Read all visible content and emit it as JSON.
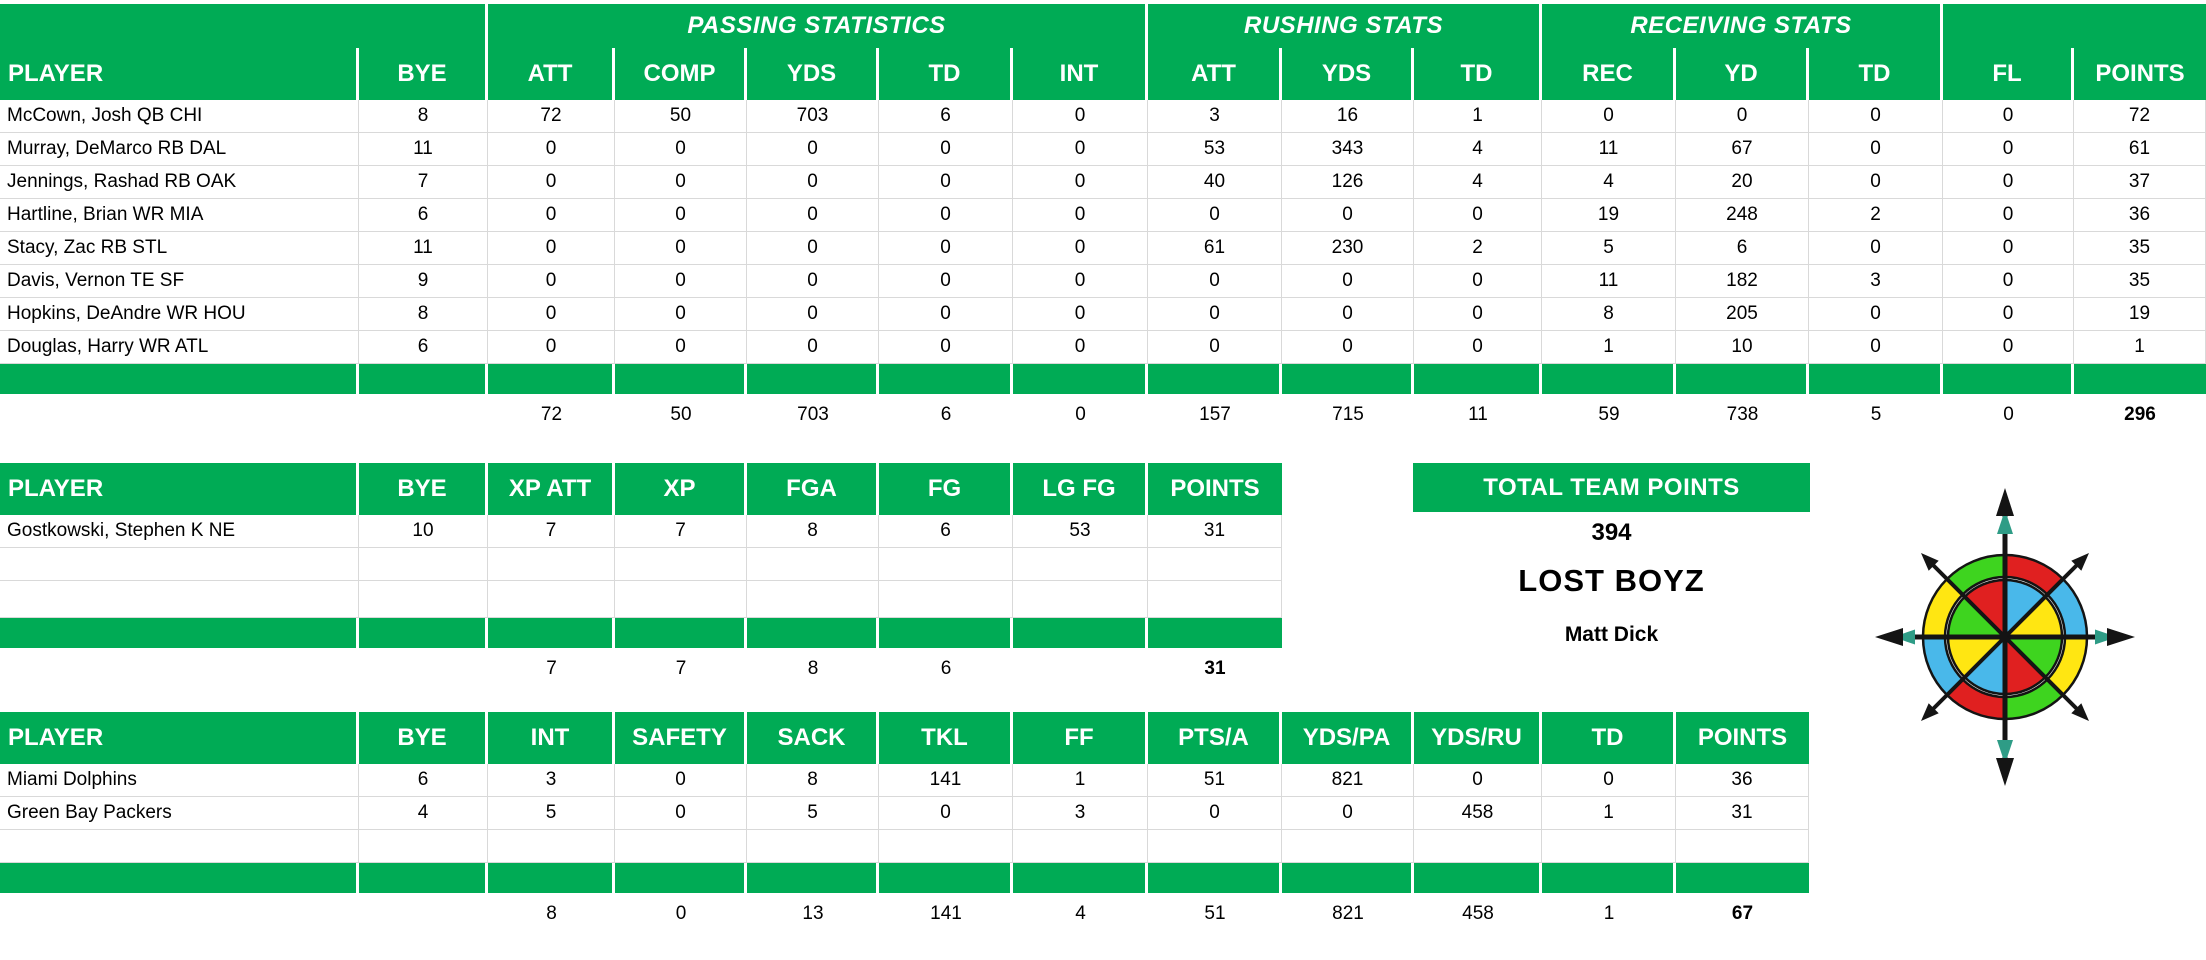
{
  "colors": {
    "header-green": "#00AB55",
    "grid-line": "#d9d9d9",
    "logo-red": "#e02020",
    "logo-green": "#3ed41f",
    "logo-yellow": "#ffe612",
    "logo-blue": "#49b8ea",
    "logo-teal": "#2e9c86",
    "logo-black": "#141414"
  },
  "tables": [
    {
      "name": "offense",
      "group_headers": [
        {
          "label": "",
          "span": 2
        },
        {
          "label": "PASSING STATISTICS",
          "span": 5
        },
        {
          "label": "RUSHING STATS",
          "span": 3
        },
        {
          "label": "RECEIVING STATS",
          "span": 3
        },
        {
          "label": "",
          "span": 2
        }
      ],
      "columns": [
        "PLAYER",
        "BYE",
        "ATT",
        "COMP",
        "YDS",
        "TD",
        "INT",
        "ATT",
        "YDS",
        "TD",
        "REC",
        "YD",
        "TD",
        "FL",
        "POINTS"
      ],
      "rows": [
        [
          "McCown, Josh QB CHI",
          "8",
          "72",
          "50",
          "703",
          "6",
          "0",
          "3",
          "16",
          "1",
          "0",
          "0",
          "0",
          "0",
          "72"
        ],
        [
          "Murray, DeMarco RB DAL",
          "11",
          "0",
          "0",
          "0",
          "0",
          "0",
          "53",
          "343",
          "4",
          "11",
          "67",
          "0",
          "0",
          "61"
        ],
        [
          "Jennings, Rashad RB OAK",
          "7",
          "0",
          "0",
          "0",
          "0",
          "0",
          "40",
          "126",
          "4",
          "4",
          "20",
          "0",
          "0",
          "37"
        ],
        [
          "Hartline, Brian WR MIA",
          "6",
          "0",
          "0",
          "0",
          "0",
          "0",
          "0",
          "0",
          "0",
          "19",
          "248",
          "2",
          "0",
          "36"
        ],
        [
          "Stacy, Zac RB STL",
          "11",
          "0",
          "0",
          "0",
          "0",
          "0",
          "61",
          "230",
          "2",
          "5",
          "6",
          "0",
          "0",
          "35"
        ],
        [
          "Davis, Vernon TE SF",
          "9",
          "0",
          "0",
          "0",
          "0",
          "0",
          "0",
          "0",
          "0",
          "11",
          "182",
          "3",
          "0",
          "35"
        ],
        [
          "Hopkins, DeAndre WR HOU",
          "8",
          "0",
          "0",
          "0",
          "0",
          "0",
          "0",
          "0",
          "0",
          "8",
          "205",
          "0",
          "0",
          "19"
        ],
        [
          "Douglas, Harry WR ATL",
          "6",
          "0",
          "0",
          "0",
          "0",
          "0",
          "0",
          "0",
          "0",
          "1",
          "10",
          "0",
          "0",
          "1"
        ]
      ],
      "empty_rows": 0,
      "totals": [
        "",
        "",
        "72",
        "50",
        "703",
        "6",
        "0",
        "157",
        "715",
        "11",
        "59",
        "738",
        "5",
        "0",
        "296"
      ]
    },
    {
      "name": "kicker",
      "group_headers": null,
      "columns": [
        "PLAYER",
        "BYE",
        "XP ATT",
        "XP",
        "FGA",
        "FG",
        "LG FG",
        "POINTS"
      ],
      "rows": [
        [
          "Gostkowski, Stephen K NE",
          "10",
          "7",
          "7",
          "8",
          "6",
          "53",
          "31"
        ]
      ],
      "empty_rows": 2,
      "totals": [
        "",
        "",
        "7",
        "7",
        "8",
        "6",
        "",
        "31"
      ]
    },
    {
      "name": "defense",
      "group_headers": null,
      "columns": [
        "PLAYER",
        "BYE",
        "INT",
        "SAFETY",
        "SACK",
        "TKL",
        "FF",
        "PTS/A",
        "YDS/PA",
        "YDS/RU",
        "TD",
        "POINTS"
      ],
      "rows": [
        [
          "Miami Dolphins",
          "6",
          "3",
          "0",
          "8",
          "141",
          "1",
          "51",
          "821",
          "0",
          "0",
          "36"
        ],
        [
          "Green Bay Packers",
          "4",
          "5",
          "0",
          "5",
          "0",
          "3",
          "0",
          "0",
          "458",
          "1",
          "31"
        ]
      ],
      "empty_rows": 1,
      "totals": [
        "",
        "",
        "8",
        "0",
        "13",
        "141",
        "4",
        "51",
        "821",
        "458",
        "1",
        "67"
      ]
    }
  ],
  "summary": {
    "title": "TOTAL TEAM POINTS",
    "total_points": "394",
    "team_name": "LOST BOYZ",
    "owner": "Matt Dick"
  }
}
